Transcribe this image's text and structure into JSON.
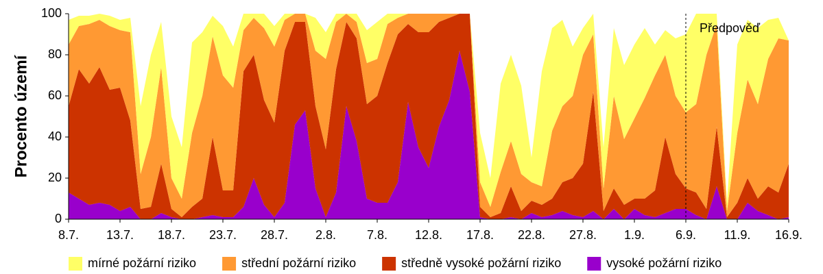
{
  "chart_data": {
    "type": "stacked_area",
    "y_label": "Procento území",
    "categories": [
      "8.7.",
      null,
      null,
      null,
      null,
      "13.7.",
      null,
      null,
      null,
      null,
      "18.7.",
      null,
      null,
      null,
      null,
      "23.7.",
      null,
      null,
      null,
      null,
      "28.7.",
      null,
      null,
      null,
      null,
      "2.8.",
      null,
      null,
      null,
      null,
      "7.8.",
      null,
      null,
      null,
      null,
      "12.8.",
      null,
      null,
      null,
      null,
      "17.8.",
      null,
      null,
      null,
      null,
      "22.8.",
      null,
      null,
      null,
      null,
      "27.8.",
      null,
      null,
      null,
      null,
      "1.9.",
      null,
      null,
      null,
      null,
      "6.9.",
      null,
      null,
      null,
      null,
      "11.9.",
      null,
      null,
      null,
      null,
      "16.9."
    ],
    "series": [
      {
        "name": "mírné požární riziko",
        "color": "#ffff66",
        "values": [
          12,
          5,
          4,
          3,
          5,
          5,
          7,
          33,
          40,
          22,
          30,
          25,
          44,
          31,
          10,
          24,
          20,
          8,
          2,
          7,
          10,
          3,
          0,
          0,
          16,
          13,
          4,
          0,
          4,
          16,
          18,
          5,
          2,
          0,
          0,
          0,
          0,
          0,
          0,
          0,
          24,
          14,
          43,
          42,
          43,
          12,
          56,
          50,
          42,
          24,
          13,
          10,
          20,
          33,
          36,
          36,
          34,
          15,
          12,
          28,
          38,
          44,
          20,
          5,
          4,
          43,
          29,
          37,
          19,
          10,
          0
        ]
      },
      {
        "name": "střední požární riziko",
        "color": "#ff9933",
        "values": [
          30,
          21,
          29,
          23,
          31,
          28,
          43,
          17,
          34,
          47,
          15,
          9,
          36,
          50,
          49,
          56,
          50,
          20,
          18,
          35,
          37,
          15,
          4,
          4,
          27,
          44,
          23,
          4,
          8,
          20,
          18,
          19,
          8,
          5,
          9,
          9,
          4,
          2,
          0,
          0,
          12,
          5,
          20,
          22,
          18,
          9,
          9,
          33,
          37,
          40,
          53,
          28,
          11,
          45,
          32,
          39,
          49,
          56,
          40,
          38,
          37,
          43,
          75,
          50,
          3,
          34,
          48,
          46,
          62,
          75,
          60
        ]
      },
      {
        "name": "středně vysoké požární riziko",
        "color": "#cc3300",
        "values": [
          42,
          63,
          59,
          66,
          56,
          60,
          42,
          5,
          6,
          24,
          4,
          1,
          6,
          9,
          38,
          13,
          13,
          66,
          60,
          51,
          46,
          74,
          50,
          43,
          40,
          33,
          60,
          41,
          50,
          46,
          52,
          68,
          72,
          38,
          56,
          66,
          51,
          40,
          18,
          38,
          5,
          1,
          3,
          15,
          4,
          6,
          6,
          8,
          14,
          18,
          26,
          58,
          4,
          10,
          7,
          5,
          8,
          13,
          37,
          17,
          10,
          11,
          5,
          29,
          1,
          8,
          12,
          6,
          14,
          13,
          26
        ]
      },
      {
        "name": "vysoké požární riziko",
        "color": "#9900cc",
        "values": [
          13,
          10,
          7,
          8,
          7,
          4,
          6,
          0,
          0,
          3,
          1,
          0,
          0,
          1,
          2,
          1,
          1,
          6,
          20,
          7,
          1,
          8,
          46,
          53,
          15,
          1,
          13,
          55,
          38,
          10,
          8,
          8,
          18,
          57,
          35,
          25,
          45,
          58,
          82,
          62,
          1,
          0,
          0,
          1,
          0,
          3,
          1,
          2,
          4,
          2,
          1,
          4,
          0,
          5,
          0,
          5,
          2,
          1,
          3,
          5,
          5,
          2,
          0,
          16,
          0,
          0,
          8,
          4,
          2,
          0,
          1
        ]
      }
    ],
    "ylim": [
      0,
      100
    ],
    "yticks": [
      0,
      20,
      40,
      60,
      80,
      100
    ],
    "annotation": {
      "text": "Předpověď",
      "x": "6.9."
    },
    "legend": "bottom"
  }
}
